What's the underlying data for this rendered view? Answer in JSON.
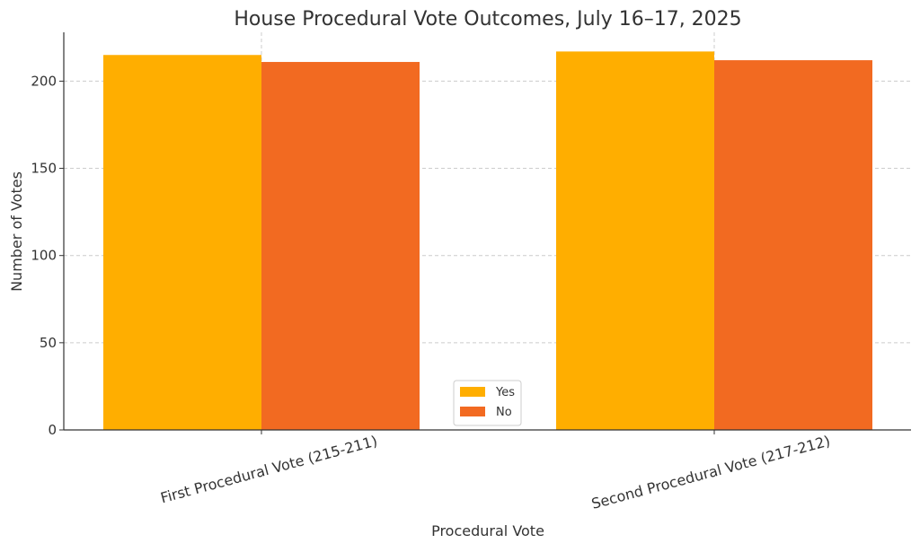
{
  "chart_data": {
    "type": "bar",
    "title": "House Procedural Vote Outcomes, July 16–17, 2025",
    "xlabel": "Procedural Vote",
    "ylabel": "Number of Votes",
    "categories": [
      "First Procedural Vote (215-211)",
      "Second Procedural Vote (217-212)"
    ],
    "series": [
      {
        "name": "Yes",
        "values": [
          215,
          217
        ],
        "color": "#FFAE00"
      },
      {
        "name": "No",
        "values": [
          211,
          212
        ],
        "color": "#F26A21"
      }
    ],
    "ylim": [
      0,
      228
    ],
    "yticks": [
      0,
      50,
      100,
      150,
      200
    ],
    "grid": true,
    "legend": "bottom-center"
  }
}
